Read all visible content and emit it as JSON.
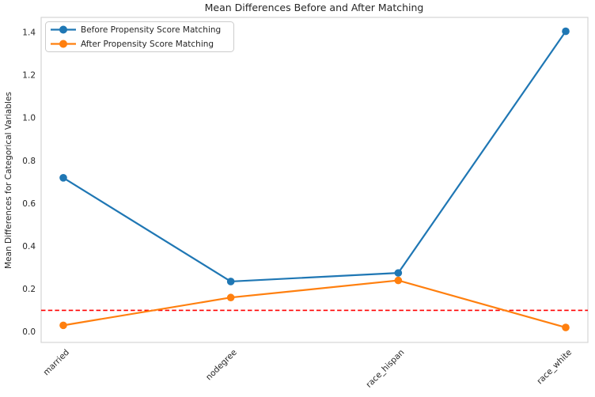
{
  "chart_data": {
    "type": "line",
    "title": "Mean Differences Before and After Matching",
    "xlabel": "",
    "ylabel": "Mean Differences for Categorical Variables",
    "categories": [
      "married",
      "nodegree",
      "race_hispan",
      "race_white"
    ],
    "series": [
      {
        "name": "Before Propensity Score Matching",
        "color": "#1f77b4",
        "marker": "circle",
        "values": [
          0.72,
          0.235,
          0.275,
          1.405
        ]
      },
      {
        "name": "After Propensity Score Matching",
        "color": "#ff7f0e",
        "marker": "circle",
        "values": [
          0.03,
          0.16,
          0.24,
          0.02
        ]
      }
    ],
    "reference_line": {
      "value": 0.1,
      "color": "#ff0000",
      "style": "dashed"
    },
    "ylim": [
      -0.05,
      1.47
    ],
    "yticks": [
      0.0,
      0.2,
      0.4,
      0.6,
      0.8,
      1.0,
      1.2,
      1.4
    ],
    "ytick_labels": [
      "0.0",
      "0.2",
      "0.4",
      "0.6",
      "0.8",
      "1.0",
      "1.2",
      "1.4"
    ],
    "grid": false,
    "legend_position": "upper left",
    "x_label_rotation_deg": 45,
    "colors": {
      "spine": "#d4d4d4",
      "text": "#262626",
      "plot_background": "#ffffff"
    }
  }
}
